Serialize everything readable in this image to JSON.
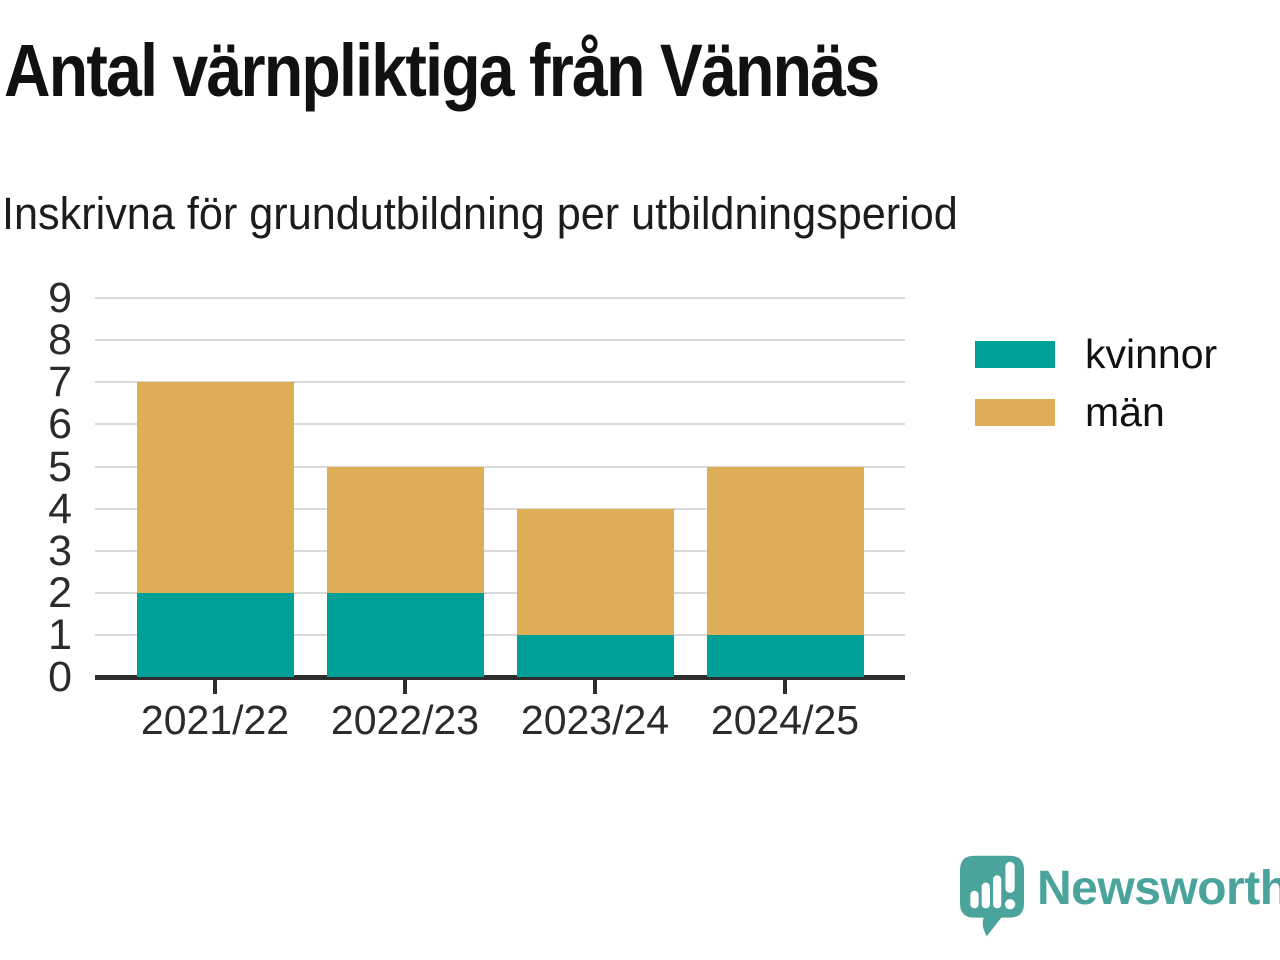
{
  "header": {
    "title": "Antal värnpliktiga från Vännäs",
    "subtitle": "Inskrivna för grundutbildning per utbildningsperiod"
  },
  "chart_data": {
    "type": "bar",
    "stacked": true,
    "title": "Antal värnpliktiga från Vännäs",
    "subtitle": "Inskrivna för grundutbildning per utbildningsperiod",
    "categories": [
      "2021/22",
      "2022/23",
      "2023/24",
      "2024/25"
    ],
    "series": [
      {
        "name": "kvinnor",
        "color": "#00a099",
        "values": [
          2,
          2,
          1,
          1
        ]
      },
      {
        "name": "män",
        "color": "#ddae55",
        "values": [
          5,
          3,
          3,
          4
        ]
      }
    ],
    "totals": [
      7,
      5,
      4,
      5
    ],
    "xlabel": "",
    "ylabel": "",
    "ylim": [
      0,
      9
    ],
    "yticks": [
      0,
      1,
      2,
      3,
      4,
      5,
      6,
      7,
      8,
      9
    ],
    "grid": true,
    "legend_position": "right"
  },
  "legend": {
    "items": [
      {
        "label": "kvinnor",
        "color": "#00a099"
      },
      {
        "label": "män",
        "color": "#ddae55"
      }
    ]
  },
  "branding": {
    "name": "Newsworthy",
    "logo_color": "#4ba49c"
  },
  "colors": {
    "kvinnor": "#00a099",
    "man": "#ddae55",
    "gridline": "#d9d9d9",
    "axis": "#2e2e2e",
    "title_text": "#111111",
    "tick_text": "#2b2b2b"
  }
}
